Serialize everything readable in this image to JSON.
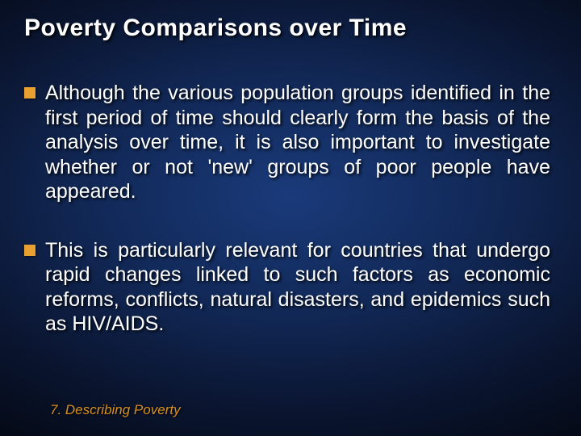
{
  "slide": {
    "title": "Poverty Comparisons over Time",
    "bullets": [
      "Although the various population groups identified in the first period of time should clearly form the basis of the analysis over time, it is also important to investigate whether or not 'new' groups of poor people have appeared.",
      "This is particularly relevant for countries that undergo rapid changes linked to such factors as economic reforms, conflicts, natural disasters, and epidemics such as HIV/AIDS."
    ],
    "footer": "7. Describing Poverty",
    "style": {
      "background_gradient_center": "#1a3a7a",
      "background_gradient_mid": "#0a1835",
      "background_gradient_edge": "#030812",
      "title_color": "#ffffff",
      "title_fontsize": 30,
      "bullet_color": "#e8a030",
      "bullet_size": 14,
      "body_color": "#ffffff",
      "body_fontsize": 25,
      "footer_color": "#d89020",
      "footer_fontsize": 17,
      "text_shadow": "2px 2px 3px rgba(0,0,0,0.9)"
    }
  }
}
